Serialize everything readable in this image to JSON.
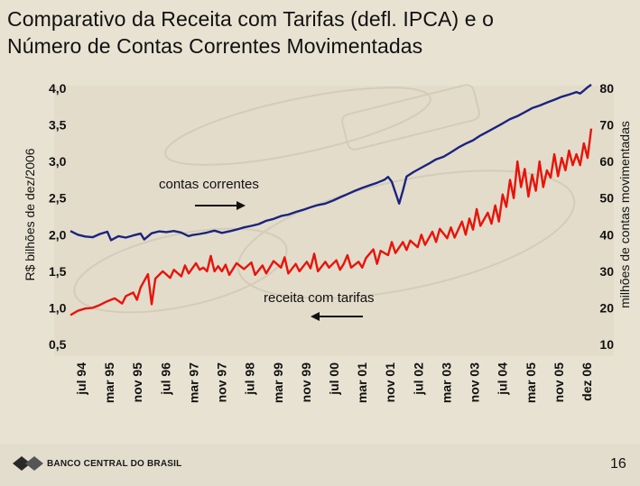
{
  "slide": {
    "title_line1": "Comparativo da Receita com Tarifas (defl. IPCA) e o",
    "title_line2": "Número de Contas Correntes Movimentadas",
    "page_number": "16",
    "logo_text": "BANCO CENTRAL DO BRASIL",
    "colors": {
      "contas": "#1a237e",
      "receita": "#e8140c",
      "background": "#e8e2d2"
    }
  },
  "chart_data": {
    "type": "line",
    "title": "",
    "ylabel_left": "R$ bilhões de dez/2006",
    "ylabel_right": "milhões de contas movimentadas",
    "ylim_left": [
      0.5,
      4.0
    ],
    "ylim_right": [
      10,
      80
    ],
    "yticks_left": [
      "4,0",
      "3,5",
      "3,0",
      "2,5",
      "2,0",
      "1,5",
      "1,0",
      "0,5"
    ],
    "yticks_right": [
      "80",
      "70",
      "60",
      "50",
      "40",
      "30",
      "20",
      "10"
    ],
    "xticks": [
      "jul 94",
      "mar 95",
      "nov 95",
      "jul 96",
      "mar 97",
      "nov 97",
      "jul 98",
      "mar 99",
      "nov 99",
      "jul 00",
      "mar 01",
      "nov 01",
      "jul 02",
      "mar 03",
      "nov 03",
      "jul 04",
      "mar 05",
      "nov 05",
      "dez 06"
    ],
    "annotations": [
      "contas correntes",
      "receita com tarifas"
    ],
    "series": [
      {
        "name": "contas correntes",
        "axis": "right",
        "points": [
          [
            0,
            41.0
          ],
          [
            2,
            40.0
          ],
          [
            4,
            39.5
          ],
          [
            6,
            39.3
          ],
          [
            8,
            40.2
          ],
          [
            10,
            40.8
          ],
          [
            11,
            38.5
          ],
          [
            13,
            39.6
          ],
          [
            15,
            39.2
          ],
          [
            17,
            39.8
          ],
          [
            19,
            40.3
          ],
          [
            20,
            38.7
          ],
          [
            22,
            40.4
          ],
          [
            24,
            40.9
          ],
          [
            26,
            40.7
          ],
          [
            28,
            41.0
          ],
          [
            30,
            40.6
          ],
          [
            32,
            39.6
          ],
          [
            33,
            39.9
          ],
          [
            35,
            40.2
          ],
          [
            37,
            40.6
          ],
          [
            39,
            41.1
          ],
          [
            41,
            40.5
          ],
          [
            43,
            40.9
          ],
          [
            45,
            41.4
          ],
          [
            47,
            42.0
          ],
          [
            49,
            42.4
          ],
          [
            51,
            42.9
          ],
          [
            53,
            43.8
          ],
          [
            55,
            44.3
          ],
          [
            57,
            45.1
          ],
          [
            59,
            45.5
          ],
          [
            61,
            46.2
          ],
          [
            63,
            46.8
          ],
          [
            65,
            47.5
          ],
          [
            67,
            48.1
          ],
          [
            69,
            48.5
          ],
          [
            71,
            49.3
          ],
          [
            73,
            50.2
          ],
          [
            75,
            51.1
          ],
          [
            77,
            52.0
          ],
          [
            79,
            52.8
          ],
          [
            81,
            53.5
          ],
          [
            83,
            54.2
          ],
          [
            85,
            55.0
          ],
          [
            86,
            55.8
          ],
          [
            87,
            54.5
          ],
          [
            88,
            51.5
          ],
          [
            89,
            48.5
          ],
          [
            90,
            52.0
          ],
          [
            91,
            55.9
          ],
          [
            93,
            57.2
          ],
          [
            95,
            58.3
          ],
          [
            97,
            59.4
          ],
          [
            99,
            60.6
          ],
          [
            101,
            61.3
          ],
          [
            103,
            62.5
          ],
          [
            105,
            63.8
          ],
          [
            107,
            64.9
          ],
          [
            109,
            65.8
          ],
          [
            111,
            67.1
          ],
          [
            113,
            68.2
          ],
          [
            115,
            69.3
          ],
          [
            117,
            70.4
          ],
          [
            119,
            71.6
          ],
          [
            121,
            72.4
          ],
          [
            123,
            73.5
          ],
          [
            125,
            74.6
          ],
          [
            127,
            75.3
          ],
          [
            129,
            76.1
          ],
          [
            131,
            76.9
          ],
          [
            133,
            77.7
          ],
          [
            135,
            78.3
          ],
          [
            137,
            79.0
          ],
          [
            138,
            78.6
          ],
          [
            139,
            79.4
          ],
          [
            140,
            80.3
          ],
          [
            141,
            81.0
          ]
        ]
      },
      {
        "name": "receita com tarifas",
        "axis": "left",
        "points": [
          [
            0,
            0.9
          ],
          [
            2,
            0.96
          ],
          [
            4,
            0.99
          ],
          [
            6,
            1.0
          ],
          [
            8,
            1.04
          ],
          [
            10,
            1.09
          ],
          [
            12,
            1.13
          ],
          [
            14,
            1.06
          ],
          [
            15,
            1.16
          ],
          [
            17,
            1.21
          ],
          [
            18,
            1.11
          ],
          [
            19,
            1.28
          ],
          [
            21,
            1.46
          ],
          [
            22,
            1.05
          ],
          [
            23,
            1.4
          ],
          [
            25,
            1.5
          ],
          [
            27,
            1.41
          ],
          [
            28,
            1.52
          ],
          [
            30,
            1.43
          ],
          [
            31,
            1.58
          ],
          [
            32,
            1.47
          ],
          [
            34,
            1.61
          ],
          [
            35,
            1.52
          ],
          [
            36,
            1.55
          ],
          [
            37,
            1.5
          ],
          [
            38,
            1.71
          ],
          [
            39,
            1.5
          ],
          [
            40,
            1.57
          ],
          [
            41,
            1.5
          ],
          [
            42,
            1.59
          ],
          [
            43,
            1.45
          ],
          [
            45,
            1.61
          ],
          [
            47,
            1.53
          ],
          [
            49,
            1.62
          ],
          [
            50,
            1.45
          ],
          [
            52,
            1.58
          ],
          [
            53,
            1.47
          ],
          [
            55,
            1.64
          ],
          [
            57,
            1.55
          ],
          [
            58,
            1.69
          ],
          [
            59,
            1.47
          ],
          [
            61,
            1.6
          ],
          [
            62,
            1.5
          ],
          [
            64,
            1.63
          ],
          [
            65,
            1.54
          ],
          [
            66,
            1.74
          ],
          [
            67,
            1.5
          ],
          [
            69,
            1.63
          ],
          [
            70,
            1.55
          ],
          [
            72,
            1.65
          ],
          [
            73,
            1.52
          ],
          [
            74,
            1.6
          ],
          [
            75,
            1.72
          ],
          [
            76,
            1.55
          ],
          [
            78,
            1.63
          ],
          [
            79,
            1.55
          ],
          [
            80,
            1.68
          ],
          [
            82,
            1.8
          ],
          [
            83,
            1.6
          ],
          [
            84,
            1.78
          ],
          [
            86,
            1.72
          ],
          [
            87,
            1.9
          ],
          [
            88,
            1.75
          ],
          [
            90,
            1.9
          ],
          [
            91,
            1.79
          ],
          [
            92,
            1.92
          ],
          [
            94,
            1.83
          ],
          [
            95,
            2.0
          ],
          [
            96,
            1.86
          ],
          [
            98,
            2.04
          ],
          [
            99,
            1.9
          ],
          [
            100,
            2.08
          ],
          [
            102,
            1.95
          ],
          [
            103,
            2.1
          ],
          [
            104,
            1.96
          ],
          [
            106,
            2.18
          ],
          [
            107,
            2.0
          ],
          [
            108,
            2.22
          ],
          [
            109,
            2.07
          ],
          [
            110,
            2.35
          ],
          [
            111,
            2.12
          ],
          [
            113,
            2.3
          ],
          [
            114,
            2.15
          ],
          [
            115,
            2.4
          ],
          [
            116,
            2.18
          ],
          [
            117,
            2.55
          ],
          [
            118,
            2.38
          ],
          [
            119,
            2.75
          ],
          [
            120,
            2.5
          ],
          [
            121,
            3.0
          ],
          [
            122,
            2.65
          ],
          [
            123,
            2.9
          ],
          [
            124,
            2.52
          ],
          [
            125,
            2.82
          ],
          [
            126,
            2.6
          ],
          [
            127,
            3.0
          ],
          [
            128,
            2.65
          ],
          [
            129,
            2.88
          ],
          [
            130,
            2.78
          ],
          [
            131,
            3.1
          ],
          [
            132,
            2.8
          ],
          [
            133,
            3.05
          ],
          [
            134,
            2.88
          ],
          [
            135,
            3.15
          ],
          [
            136,
            2.95
          ],
          [
            137,
            3.1
          ],
          [
            138,
            2.95
          ],
          [
            139,
            3.25
          ],
          [
            140,
            3.05
          ],
          [
            141,
            3.45
          ]
        ]
      }
    ]
  }
}
